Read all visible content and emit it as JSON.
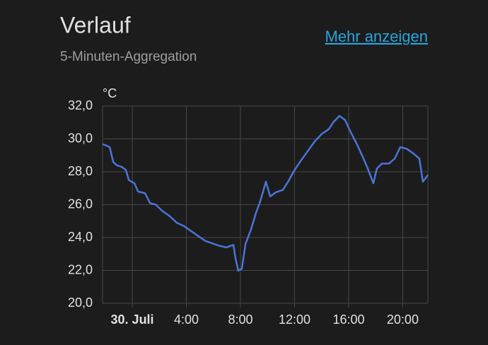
{
  "header": {
    "title": "Verlauf",
    "subtitle": "5-Minuten-Aggregation",
    "link": "Mehr anzeigen"
  },
  "chart_data": {
    "type": "line",
    "y_label": "°C",
    "color": "#4b74d6",
    "grid": true,
    "x": [
      -2.2,
      -1.93,
      -1.67,
      -1.41,
      -1.15,
      -0.78,
      -0.47,
      -0.26,
      0.16,
      0.42,
      0.94,
      1.31,
      1.73,
      2.25,
      2.77,
      3.29,
      3.82,
      4.34,
      4.86,
      5.39,
      5.91,
      6.43,
      6.95,
      7.48,
      7.63,
      7.84,
      8.1,
      8.37,
      8.78,
      9.15,
      9.46,
      9.88,
      10.2,
      10.61,
      11.14,
      11.56,
      11.92,
      12.44,
      12.97,
      13.49,
      14.01,
      14.54,
      14.9,
      15.32,
      15.74,
      16.1,
      16.63,
      17.05,
      17.41,
      17.83,
      18.09,
      18.46,
      18.98,
      19.4,
      19.82,
      20.29,
      20.81,
      21.23,
      21.49,
      21.86
    ],
    "values": [
      29.68,
      29.6,
      29.5,
      28.6,
      28.4,
      28.3,
      28.1,
      27.5,
      27.3,
      26.8,
      26.7,
      26.1,
      26.0,
      25.6,
      25.3,
      24.9,
      24.7,
      24.4,
      24.1,
      23.8,
      23.65,
      23.5,
      23.4,
      23.55,
      22.75,
      21.98,
      22.1,
      23.6,
      24.5,
      25.5,
      26.2,
      27.4,
      26.5,
      26.75,
      26.9,
      27.45,
      28.0,
      28.65,
      29.25,
      29.85,
      30.3,
      30.6,
      31.05,
      31.4,
      31.15,
      30.5,
      29.65,
      28.9,
      28.2,
      27.3,
      28.2,
      28.5,
      28.5,
      28.8,
      29.5,
      29.4,
      29.1,
      28.8,
      27.4,
      27.8
    ],
    "xlim": [
      -2.2,
      21.86
    ],
    "xticks": [
      {
        "value": 0,
        "label": "30. Juli"
      },
      {
        "value": 4,
        "label": "4:00"
      },
      {
        "value": 8,
        "label": "8:00"
      },
      {
        "value": 12,
        "label": "12:00"
      },
      {
        "value": 16,
        "label": "16:00"
      },
      {
        "value": 20,
        "label": "20:00"
      }
    ],
    "ylim": [
      20,
      32
    ],
    "yticks": [
      {
        "value": 20,
        "label": "20,0"
      },
      {
        "value": 22,
        "label": "22,0"
      },
      {
        "value": 24,
        "label": "24,0"
      },
      {
        "value": 26,
        "label": "26,0"
      },
      {
        "value": 28,
        "label": "28,0"
      },
      {
        "value": 30,
        "label": "30,0"
      },
      {
        "value": 32,
        "label": "32,0"
      }
    ]
  }
}
